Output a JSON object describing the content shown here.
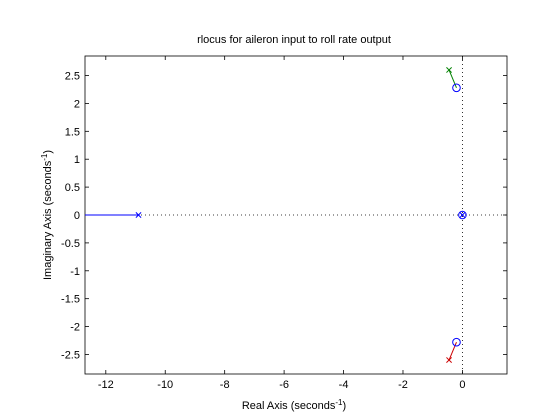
{
  "chart_data": {
    "type": "scatter",
    "title": "rlocus for aileron input to roll rate output",
    "xlabel": "Real Axis (seconds",
    "xlabel_sup": "-1",
    "xlabel_close": ")",
    "ylabel": "Imaginary Axis (seconds",
    "ylabel_sup": "-1",
    "ylabel_close": ")",
    "xlim": [
      -12.7,
      1.5
    ],
    "ylim": [
      -2.85,
      2.85
    ],
    "xticks": [
      -12,
      -10,
      -8,
      -6,
      -4,
      -2,
      0
    ],
    "xtick_labels": [
      "-12",
      "-10",
      "-8",
      "-6",
      "-4",
      "-2",
      "0"
    ],
    "yticks": [
      2.5,
      2,
      1.5,
      1,
      0.5,
      0,
      -0.5,
      -1,
      -1.5,
      -2,
      -2.5
    ],
    "ytick_labels": [
      "2.5",
      "2",
      "1.5",
      "1",
      "0.5",
      "0",
      "-0.5",
      "-1",
      "-1.5",
      "-2",
      "-2.5"
    ],
    "grid": false,
    "poles": [
      {
        "x": -10.9,
        "y": 0,
        "color": "#0000ff"
      },
      {
        "x": -0.45,
        "y": 2.6,
        "color": "#008000"
      },
      {
        "x": -0.45,
        "y": -2.6,
        "color": "#cc0000"
      },
      {
        "x": 0.0,
        "y": 0,
        "color": "#0000ff"
      }
    ],
    "zeros": [
      {
        "x": -0.2,
        "y": 2.28
      },
      {
        "x": -0.2,
        "y": -2.28
      },
      {
        "x": 0.0,
        "y": 0
      }
    ],
    "branches": [
      {
        "color": "#0000ff",
        "x": [
          -10.9,
          -12.7
        ],
        "y": [
          0,
          0
        ]
      },
      {
        "color": "#008000",
        "x": [
          -0.45,
          -0.2
        ],
        "y": [
          2.6,
          2.28
        ]
      },
      {
        "color": "#cc0000",
        "x": [
          -0.45,
          -0.2
        ],
        "y": [
          -2.6,
          -2.28
        ]
      }
    ],
    "colors": {
      "axes": "#000000",
      "guide": "#000000",
      "marker": "#0000ff"
    }
  }
}
